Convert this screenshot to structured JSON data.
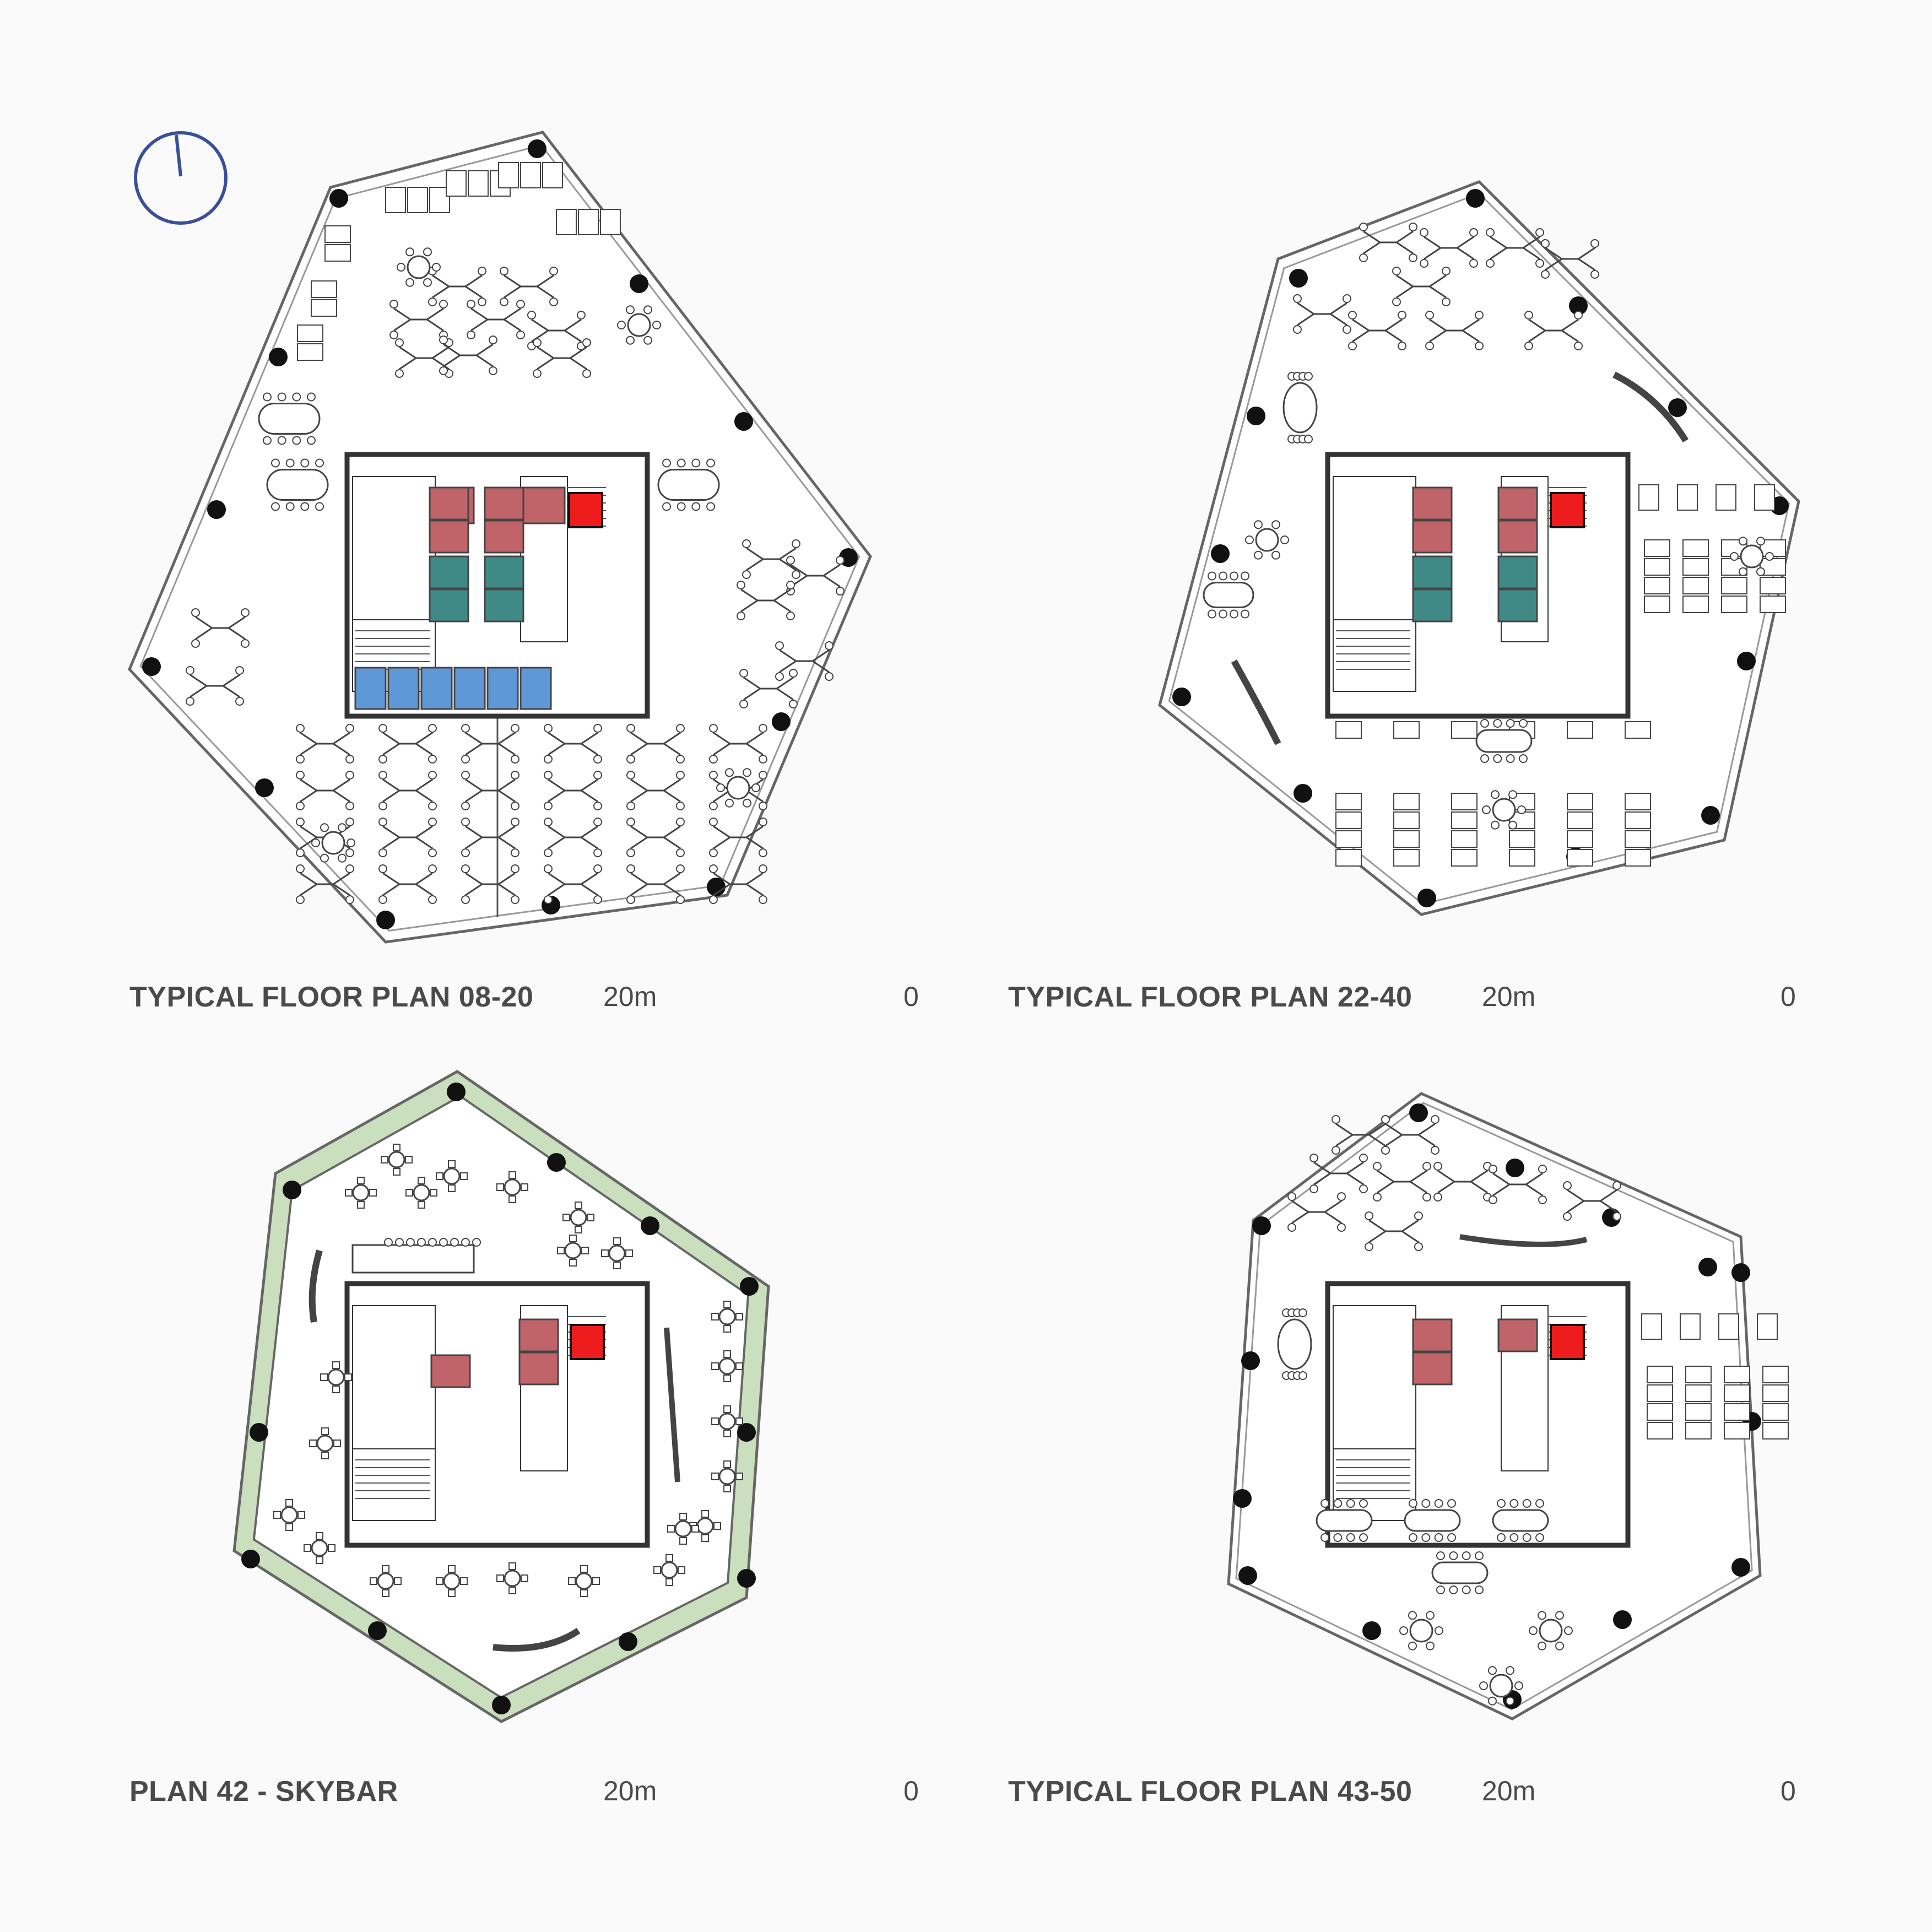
{
  "plans": [
    {
      "title": "TYPICAL FLOOR PLAN 08-20",
      "scale": {
        "left": "20m",
        "right": "0"
      }
    },
    {
      "title": "TYPICAL FLOOR PLAN 22-40",
      "scale": {
        "left": "20m",
        "right": "0"
      }
    },
    {
      "title": "PLAN 42 - SKYBAR",
      "scale": {
        "left": "20m",
        "right": "0"
      }
    },
    {
      "title": "TYPICAL FLOOR PLAN 43-50",
      "scale": {
        "left": "20m",
        "right": "0"
      }
    }
  ],
  "colors": {
    "background": "#fafafa",
    "outline": "#666666",
    "column": "#111111",
    "lift_red": "#c0646a",
    "lift_teal": "#3f8a86",
    "lift_blue": "#5f98d6",
    "fire_lift": "#ee1c1c",
    "terrace_green": "#c9dfbd",
    "north_arrow": "#3a4f9a"
  },
  "icons": [
    "north-arrow-icon"
  ]
}
